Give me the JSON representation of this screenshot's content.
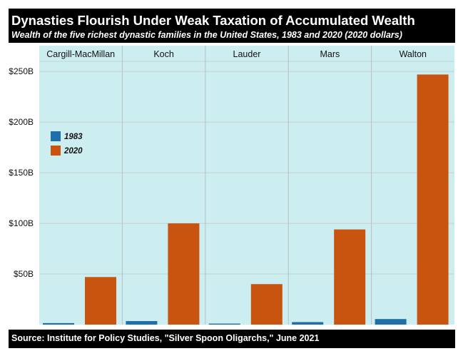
{
  "header": {
    "title": "Dynasties Flourish Under Weak Taxation of Accumulated Wealth",
    "subtitle": "Wealth of the five richest dynastic families in the United States, 1983 and 2020 (2020 dollars)"
  },
  "footer": {
    "source": "Source: Institute for Policy Studies, \"Silver Spoon Oligarchs,\" June 2021"
  },
  "colors": {
    "panel_background": "#cdeef0",
    "series_1983": "#1f6faa",
    "series_2020": "#c95410"
  },
  "chart_data": {
    "type": "bar",
    "facets": [
      "Cargill-MacMillan",
      "Koch",
      "Lauder",
      "Mars",
      "Walton"
    ],
    "series": [
      {
        "name": "1983",
        "values": [
          1.5,
          3.5,
          1.0,
          2.5,
          5.5
        ]
      },
      {
        "name": "2020",
        "values": [
          47,
          100,
          40,
          94,
          247
        ]
      }
    ],
    "yticks": [
      {
        "value": 50,
        "label": "$50B"
      },
      {
        "value": 100,
        "label": "$100B"
      },
      {
        "value": 150,
        "label": "$150B"
      },
      {
        "value": 200,
        "label": "$200B"
      },
      {
        "value": 250,
        "label": "$250B"
      }
    ],
    "ylim": [
      0,
      260
    ],
    "legend_position": "left, upper middle of first panel",
    "grid": true
  }
}
